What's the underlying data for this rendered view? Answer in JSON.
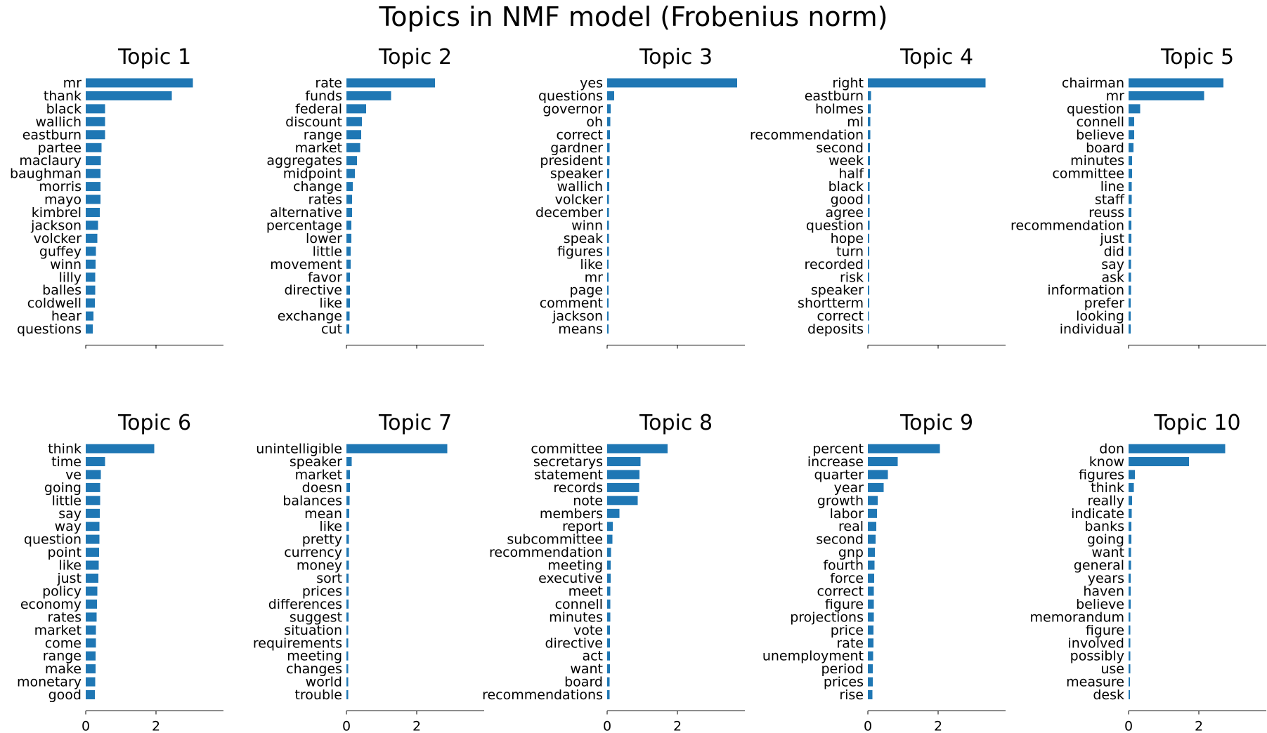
{
  "title": "Topics in NMF model (Frobenius norm)",
  "colors": {
    "bar": "#1f77b4",
    "axis": "#000000",
    "text": "#000000"
  },
  "chart_data": [
    {
      "type": "bar",
      "orientation": "horizontal",
      "title": "Topic 1",
      "xlim": [
        0,
        3.9
      ],
      "xticks": [],
      "xtick_labels": [],
      "categories": [
        "mr",
        "thank",
        "black",
        "wallich",
        "eastburn",
        "partee",
        "maclaury",
        "baughman",
        "morris",
        "mayo",
        "kimbrel",
        "jackson",
        "volcker",
        "guffey",
        "winn",
        "lilly",
        "balles",
        "coldwell",
        "hear",
        "questions"
      ],
      "values": [
        3.05,
        2.45,
        0.55,
        0.55,
        0.55,
        0.45,
        0.43,
        0.42,
        0.42,
        0.42,
        0.4,
        0.35,
        0.33,
        0.29,
        0.28,
        0.27,
        0.27,
        0.26,
        0.22,
        0.2
      ]
    },
    {
      "type": "bar",
      "orientation": "horizontal",
      "title": "Topic 2",
      "xlim": [
        0,
        3.9
      ],
      "xticks": [],
      "xtick_labels": [],
      "categories": [
        "rate",
        "funds",
        "federal",
        "discount",
        "range",
        "market",
        "aggregates",
        "midpoint",
        "change",
        "rates",
        "alternative",
        "percentage",
        "lower",
        "little",
        "movement",
        "favor",
        "directive",
        "like",
        "exchange",
        "cut"
      ],
      "values": [
        2.52,
        1.27,
        0.56,
        0.44,
        0.42,
        0.39,
        0.3,
        0.24,
        0.18,
        0.16,
        0.16,
        0.14,
        0.14,
        0.12,
        0.12,
        0.1,
        0.1,
        0.1,
        0.09,
        0.08
      ]
    },
    {
      "type": "bar",
      "orientation": "horizontal",
      "title": "Topic 3",
      "xlim": [
        0,
        3.9
      ],
      "xticks": [],
      "xtick_labels": [],
      "categories": [
        "yes",
        "questions",
        "governor",
        "oh",
        "correct",
        "gardner",
        "president",
        "speaker",
        "wallich",
        "volcker",
        "december",
        "winn",
        "speak",
        "figures",
        "like",
        "mr",
        "page",
        "comment",
        "jackson",
        "means"
      ],
      "values": [
        3.7,
        0.2,
        0.1,
        0.09,
        0.08,
        0.07,
        0.07,
        0.06,
        0.06,
        0.05,
        0.05,
        0.05,
        0.05,
        0.05,
        0.04,
        0.04,
        0.04,
        0.04,
        0.04,
        0.04
      ]
    },
    {
      "type": "bar",
      "orientation": "horizontal",
      "title": "Topic 4",
      "xlim": [
        0,
        3.9
      ],
      "xticks": [],
      "xtick_labels": [],
      "categories": [
        "right",
        "eastburn",
        "holmes",
        "ml",
        "recommendation",
        "second",
        "week",
        "half",
        "black",
        "good",
        "agree",
        "question",
        "hope",
        "turn",
        "recorded",
        "risk",
        "speaker",
        "shortterm",
        "correct",
        "deposits"
      ],
      "values": [
        3.35,
        0.09,
        0.08,
        0.07,
        0.07,
        0.06,
        0.06,
        0.06,
        0.05,
        0.05,
        0.05,
        0.05,
        0.04,
        0.04,
        0.04,
        0.04,
        0.04,
        0.04,
        0.03,
        0.03
      ]
    },
    {
      "type": "bar",
      "orientation": "horizontal",
      "title": "Topic 5",
      "xlim": [
        0,
        3.9
      ],
      "xticks": [],
      "xtick_labels": [],
      "categories": [
        "chairman",
        "mr",
        "question",
        "connell",
        "believe",
        "board",
        "minutes",
        "committee",
        "line",
        "staff",
        "reuss",
        "recommendation",
        "just",
        "did",
        "say",
        "ask",
        "information",
        "prefer",
        "looking",
        "individual"
      ],
      "values": [
        2.7,
        2.15,
        0.33,
        0.16,
        0.16,
        0.14,
        0.1,
        0.1,
        0.09,
        0.09,
        0.08,
        0.08,
        0.08,
        0.07,
        0.07,
        0.07,
        0.07,
        0.06,
        0.06,
        0.06
      ]
    },
    {
      "type": "bar",
      "orientation": "horizontal",
      "title": "Topic 6",
      "xlim": [
        0,
        3.9
      ],
      "xticks": [
        0,
        2
      ],
      "xtick_labels": [
        "0",
        "2"
      ],
      "categories": [
        "think",
        "time",
        "ve",
        "going",
        "little",
        "say",
        "way",
        "question",
        "point",
        "like",
        "just",
        "policy",
        "economy",
        "rates",
        "market",
        "come",
        "range",
        "make",
        "monetary",
        "good"
      ],
      "values": [
        1.95,
        0.55,
        0.43,
        0.41,
        0.41,
        0.4,
        0.39,
        0.39,
        0.38,
        0.37,
        0.36,
        0.33,
        0.32,
        0.31,
        0.29,
        0.29,
        0.28,
        0.28,
        0.27,
        0.26
      ]
    },
    {
      "type": "bar",
      "orientation": "horizontal",
      "title": "Topic 7",
      "xlim": [
        0,
        3.9
      ],
      "xticks": [
        0,
        2
      ],
      "xtick_labels": [
        "0",
        "2"
      ],
      "categories": [
        "unintelligible",
        "speaker",
        "market",
        "doesn",
        "balances",
        "mean",
        "like",
        "pretty",
        "currency",
        "money",
        "sort",
        "prices",
        "differences",
        "suggest",
        "situation",
        "requirements",
        "meeting",
        "changes",
        "world",
        "trouble"
      ],
      "values": [
        2.87,
        0.15,
        0.1,
        0.1,
        0.09,
        0.08,
        0.07,
        0.07,
        0.07,
        0.07,
        0.06,
        0.06,
        0.06,
        0.06,
        0.05,
        0.05,
        0.05,
        0.05,
        0.05,
        0.05
      ]
    },
    {
      "type": "bar",
      "orientation": "horizontal",
      "title": "Topic 8",
      "xlim": [
        0,
        3.9
      ],
      "xticks": [
        0,
        2
      ],
      "xtick_labels": [
        "0",
        "2"
      ],
      "categories": [
        "committee",
        "secretarys",
        "statement",
        "records",
        "note",
        "members",
        "report",
        "subcommittee",
        "recommendation",
        "meeting",
        "executive",
        "meet",
        "connell",
        "minutes",
        "vote",
        "directive",
        "act",
        "want",
        "board",
        "recommendations"
      ],
      "values": [
        1.72,
        0.95,
        0.92,
        0.91,
        0.87,
        0.35,
        0.16,
        0.15,
        0.11,
        0.1,
        0.1,
        0.09,
        0.09,
        0.09,
        0.08,
        0.08,
        0.08,
        0.08,
        0.07,
        0.07
      ]
    },
    {
      "type": "bar",
      "orientation": "horizontal",
      "title": "Topic 9",
      "xlim": [
        0,
        3.9
      ],
      "xticks": [
        0,
        2
      ],
      "xtick_labels": [
        "0",
        "2"
      ],
      "categories": [
        "percent",
        "increase",
        "quarter",
        "year",
        "growth",
        "labor",
        "real",
        "second",
        "gnp",
        "fourth",
        "force",
        "correct",
        "figure",
        "projections",
        "price",
        "rate",
        "unemployment",
        "period",
        "prices",
        "rise"
      ],
      "values": [
        2.05,
        0.85,
        0.57,
        0.45,
        0.28,
        0.26,
        0.24,
        0.22,
        0.2,
        0.19,
        0.18,
        0.17,
        0.17,
        0.17,
        0.16,
        0.16,
        0.15,
        0.14,
        0.14,
        0.13
      ]
    },
    {
      "type": "bar",
      "orientation": "horizontal",
      "title": "Topic 10",
      "xlim": [
        0,
        3.9
      ],
      "xticks": [
        0,
        2
      ],
      "xtick_labels": [
        "0",
        "2"
      ],
      "categories": [
        "don",
        "know",
        "figures",
        "think",
        "really",
        "indicate",
        "banks",
        "going",
        "want",
        "general",
        "years",
        "haven",
        "believe",
        "memorandum",
        "figure",
        "involved",
        "possibly",
        "use",
        "measure",
        "desk"
      ],
      "values": [
        2.75,
        1.72,
        0.18,
        0.15,
        0.1,
        0.09,
        0.08,
        0.08,
        0.07,
        0.07,
        0.06,
        0.06,
        0.06,
        0.05,
        0.05,
        0.05,
        0.05,
        0.05,
        0.04,
        0.04
      ]
    }
  ]
}
